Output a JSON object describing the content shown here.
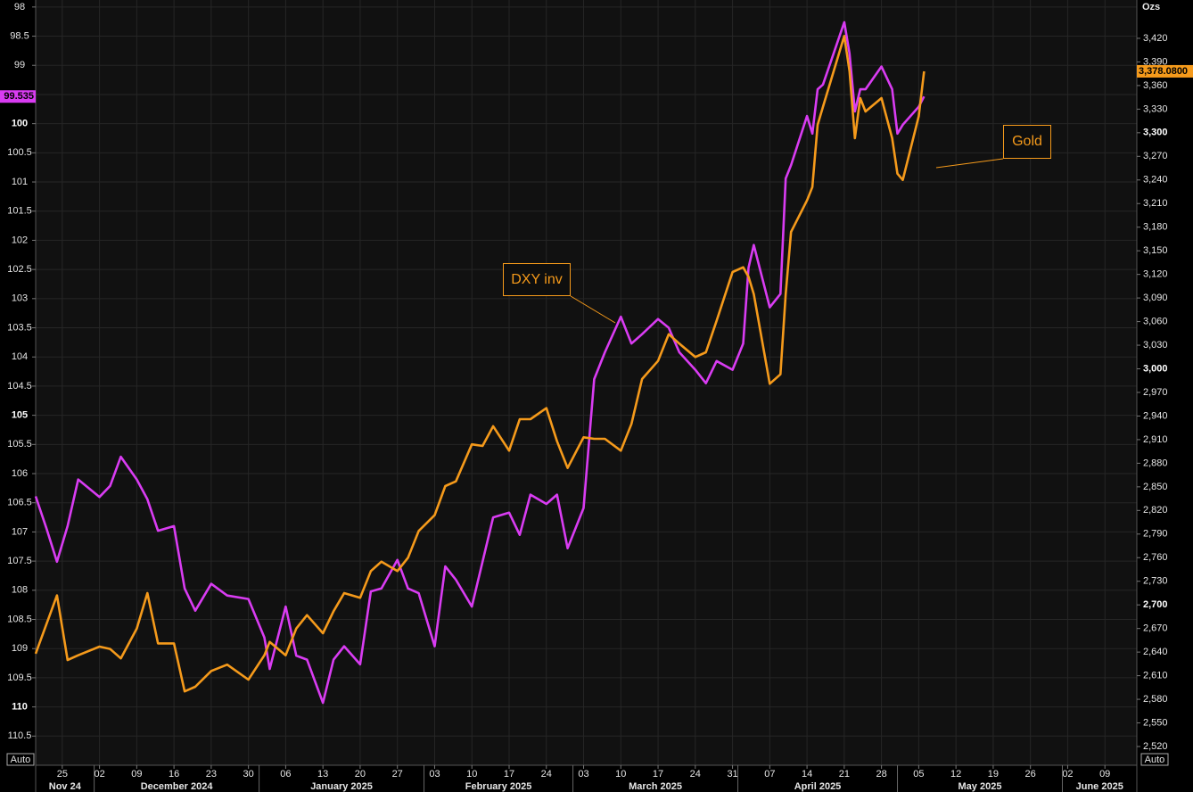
{
  "chart_data": {
    "type": "line",
    "y2_unit": "Ozs",
    "left_scale_mode": "Auto",
    "right_scale_mode": "Auto",
    "annotations": [
      "DXY inv",
      "Gold"
    ],
    "grid": true,
    "xlim": [
      "2024-11-20",
      "2025-06-15"
    ],
    "xticks": [
      {
        "value": "2024-11-25",
        "label": "25"
      },
      {
        "value": "2024-12-02",
        "label": "02"
      },
      {
        "value": "2024-12-09",
        "label": "09"
      },
      {
        "value": "2024-12-16",
        "label": "16"
      },
      {
        "value": "2024-12-23",
        "label": "23"
      },
      {
        "value": "2024-12-30",
        "label": "30"
      },
      {
        "value": "2025-01-06",
        "label": "06"
      },
      {
        "value": "2025-01-13",
        "label": "13"
      },
      {
        "value": "2025-01-20",
        "label": "20"
      },
      {
        "value": "2025-01-27",
        "label": "27"
      },
      {
        "value": "2025-02-03",
        "label": "03"
      },
      {
        "value": "2025-02-10",
        "label": "10"
      },
      {
        "value": "2025-02-17",
        "label": "17"
      },
      {
        "value": "2025-02-24",
        "label": "24"
      },
      {
        "value": "2025-03-03",
        "label": "03"
      },
      {
        "value": "2025-03-10",
        "label": "10"
      },
      {
        "value": "2025-03-17",
        "label": "17"
      },
      {
        "value": "2025-03-24",
        "label": "24"
      },
      {
        "value": "2025-03-31",
        "label": "31"
      },
      {
        "value": "2025-04-07",
        "label": "07"
      },
      {
        "value": "2025-04-14",
        "label": "14"
      },
      {
        "value": "2025-04-21",
        "label": "21"
      },
      {
        "value": "2025-04-28",
        "label": "28"
      },
      {
        "value": "2025-05-05",
        "label": "05"
      },
      {
        "value": "2025-05-12",
        "label": "12"
      },
      {
        "value": "2025-05-19",
        "label": "19"
      },
      {
        "value": "2025-05-26",
        "label": "26"
      },
      {
        "value": "2025-06-02",
        "label": "02"
      },
      {
        "value": "2025-06-09",
        "label": "09"
      }
    ],
    "month_ticks": [
      {
        "value": "2024-11-01",
        "label": "Nov 24"
      },
      {
        "value": "2024-12-01",
        "label": "December 2024"
      },
      {
        "value": "2025-01-01",
        "label": "January 2025"
      },
      {
        "value": "2025-02-01",
        "label": "February 2025"
      },
      {
        "value": "2025-03-01",
        "label": "March 2025"
      },
      {
        "value": "2025-04-01",
        "label": "April 2025"
      },
      {
        "value": "2025-05-01",
        "label": "May 2025"
      },
      {
        "value": "2025-06-01",
        "label": "June 2025"
      }
    ],
    "ylim": [
      111,
      97.88
    ],
    "yticks": [
      98,
      98.5,
      99,
      99.5,
      100,
      100.5,
      101,
      101.5,
      102,
      102.5,
      103,
      103.5,
      104,
      104.5,
      105,
      105.5,
      106,
      106.5,
      107,
      107.5,
      108,
      108.5,
      109,
      109.5,
      110,
      110.5
    ],
    "y2lim": [
      2496.2,
      3468.7
    ],
    "y2ticks": [
      {
        "value": 2520,
        "label": "2,520"
      },
      {
        "value": 2550,
        "label": "2,550"
      },
      {
        "value": 2580,
        "label": "2,580"
      },
      {
        "value": 2610,
        "label": "2,610"
      },
      {
        "value": 2640,
        "label": "2,640"
      },
      {
        "value": 2670,
        "label": "2,670"
      },
      {
        "value": 2700,
        "label": "2,700"
      },
      {
        "value": 2730,
        "label": "2,730"
      },
      {
        "value": 2760,
        "label": "2,760"
      },
      {
        "value": 2790,
        "label": "2,790"
      },
      {
        "value": 2820,
        "label": "2,820"
      },
      {
        "value": 2850,
        "label": "2,850"
      },
      {
        "value": 2880,
        "label": "2,880"
      },
      {
        "value": 2910,
        "label": "2,910"
      },
      {
        "value": 2940,
        "label": "2,940"
      },
      {
        "value": 2970,
        "label": "2,970"
      },
      {
        "value": 3000,
        "label": "3,000"
      },
      {
        "value": 3030,
        "label": "3,030"
      },
      {
        "value": 3060,
        "label": "3,060"
      },
      {
        "value": 3090,
        "label": "3,090"
      },
      {
        "value": 3120,
        "label": "3,120"
      },
      {
        "value": 3150,
        "label": "3,150"
      },
      {
        "value": 3180,
        "label": "3,180"
      },
      {
        "value": 3210,
        "label": "3,210"
      },
      {
        "value": 3240,
        "label": "3,240"
      },
      {
        "value": 3270,
        "label": "3,270"
      },
      {
        "value": 3300,
        "label": "3,300"
      },
      {
        "value": 3330,
        "label": "3,330"
      },
      {
        "value": 3360,
        "label": "3,360"
      },
      {
        "value": 3390,
        "label": "3,390"
      },
      {
        "value": 3420,
        "label": "3,420"
      }
    ],
    "x": [
      "2024-11-20",
      "2024-11-22",
      "2024-11-24",
      "2024-11-26",
      "2024-11-28",
      "2024-12-02",
      "2024-12-04",
      "2024-12-06",
      "2024-12-09",
      "2024-12-11",
      "2024-12-13",
      "2024-12-16",
      "2024-12-18",
      "2024-12-20",
      "2024-12-23",
      "2024-12-26",
      "2024-12-30",
      "2025-01-02",
      "2025-01-03",
      "2025-01-06",
      "2025-01-08",
      "2025-01-10",
      "2025-01-13",
      "2025-01-15",
      "2025-01-17",
      "2025-01-20",
      "2025-01-22",
      "2025-01-24",
      "2025-01-27",
      "2025-01-29",
      "2025-01-31",
      "2025-02-03",
      "2025-02-05",
      "2025-02-07",
      "2025-02-10",
      "2025-02-12",
      "2025-02-14",
      "2025-02-17",
      "2025-02-19",
      "2025-02-21",
      "2025-02-24",
      "2025-02-26",
      "2025-02-28",
      "2025-03-03",
      "2025-03-05",
      "2025-03-07",
      "2025-03-10",
      "2025-03-12",
      "2025-03-14",
      "2025-03-17",
      "2025-03-19",
      "2025-03-21",
      "2025-03-24",
      "2025-03-26",
      "2025-03-28",
      "2025-03-31",
      "2025-04-02",
      "2025-04-03",
      "2025-04-04",
      "2025-04-07",
      "2025-04-09",
      "2025-04-10",
      "2025-04-11",
      "2025-04-14",
      "2025-04-15",
      "2025-04-16",
      "2025-04-17",
      "2025-04-21",
      "2025-04-22",
      "2025-04-23",
      "2025-04-24",
      "2025-04-25",
      "2025-04-28",
      "2025-04-30",
      "2025-05-01",
      "2025-05-02",
      "2025-05-05",
      "2025-05-06"
    ],
    "series": [
      {
        "name": "DXY inv",
        "color": "#d93cf2",
        "axis": "y",
        "values": [
          106.39,
          106.93,
          107.51,
          106.9,
          106.1,
          106.4,
          106.21,
          105.71,
          106.1,
          106.44,
          106.98,
          106.9,
          107.97,
          108.35,
          107.89,
          108.09,
          108.15,
          108.81,
          109.35,
          108.28,
          109.12,
          109.19,
          109.93,
          109.19,
          108.96,
          109.27,
          108.02,
          107.97,
          107.48,
          107.97,
          108.05,
          108.96,
          107.59,
          107.82,
          108.28,
          107.51,
          106.75,
          106.67,
          107.05,
          106.36,
          106.52,
          106.36,
          107.28,
          106.59,
          104.38,
          103.92,
          103.31,
          103.77,
          103.61,
          103.35,
          103.5,
          103.92,
          104.22,
          104.45,
          104.07,
          104.22,
          103.77,
          102.47,
          102.08,
          103.15,
          102.92,
          100.94,
          100.71,
          99.87,
          100.17,
          99.41,
          99.33,
          98.26,
          98.8,
          99.79,
          99.41,
          99.41,
          99.02,
          99.41,
          100.17,
          100.02,
          99.71,
          99.535
        ]
      },
      {
        "name": "Gold",
        "color": "#f59a1b",
        "axis": "y2",
        "last_value_label": "3,378.0800",
        "values": [
          2638,
          2675,
          2712,
          2630,
          2636,
          2647,
          2644,
          2632,
          2670,
          2715,
          2651,
          2651,
          2590,
          2596,
          2616,
          2624,
          2605,
          2636,
          2653,
          2636,
          2670,
          2687,
          2664,
          2692,
          2715,
          2709,
          2743,
          2755,
          2743,
          2760,
          2794,
          2814,
          2851,
          2857,
          2904,
          2902,
          2927,
          2896,
          2936,
          2936,
          2950,
          2908,
          2874,
          2913,
          2911,
          2911,
          2896,
          2930,
          2987,
          3010,
          3044,
          3032,
          3015,
          3021,
          3061,
          3123,
          3129,
          3117,
          3095,
          2981,
          2993,
          3095,
          3174,
          3214,
          3231,
          3310,
          3333,
          3423,
          3378,
          3293,
          3344,
          3327,
          3344,
          3293,
          3248,
          3240,
          3321,
          3378.08
        ]
      }
    ]
  }
}
